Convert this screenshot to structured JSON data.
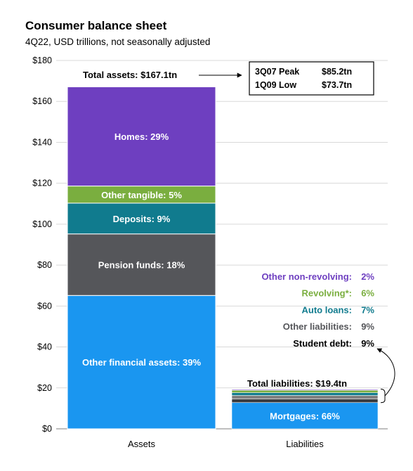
{
  "title": "Consumer balance sheet",
  "subtitle": "4Q22, USD trillions, not seasonally adjusted",
  "colors": {
    "homes": "#6E3FC0",
    "other_tangible": "#7AAE3F",
    "deposits": "#107B8E",
    "pension_funds": "#55565A",
    "other_financial": "#1A96F0",
    "grid": "#D9D9D9"
  },
  "chart_data": {
    "type": "bar",
    "stacked": true,
    "categories": [
      "Assets",
      "Liabilities"
    ],
    "ylim": [
      0,
      180
    ],
    "yticks": [
      "$0",
      "$20",
      "$40",
      "$60",
      "$80",
      "$100",
      "$120",
      "$140",
      "$160",
      "$180"
    ],
    "grid": true,
    "assets": {
      "total_label": "Total assets: $167.1tn",
      "total": 167.1,
      "segments": [
        {
          "label": "Other financial assets: 39%",
          "pct": 39,
          "color": "#1A96F0",
          "text_dark": false
        },
        {
          "label": "Pension funds: 18%",
          "pct": 18,
          "color": "#55565A",
          "text_dark": false
        },
        {
          "label": "Deposits: 9%",
          "pct": 9,
          "color": "#107B8E",
          "text_dark": false
        },
        {
          "label": "Other tangible: 5%",
          "pct": 5,
          "color": "#7AAE3F",
          "text_dark": false
        },
        {
          "label": "Homes: 29%",
          "pct": 29,
          "color": "#6E3FC0",
          "text_dark": false
        }
      ]
    },
    "liabilities": {
      "total_label": "Total liabilities: $19.4tn",
      "total": 19.4,
      "segments": [
        {
          "label": "Mortgages: 66%",
          "pct": 66,
          "color": "#1A96F0"
        },
        {
          "label": "Student debt: 9%",
          "pct": 9,
          "color": "#3A3B3E"
        },
        {
          "label": "Other liabilities: 9%",
          "pct": 9,
          "color": "#7F7F7F"
        },
        {
          "label": "Auto loans: 7%",
          "pct": 7,
          "color": "#107B8E"
        },
        {
          "label": "Revolving*: 6%",
          "pct": 6,
          "color": "#7AAE3F"
        },
        {
          "label": "Other non-revolving: 2%",
          "pct": 2,
          "color": "#6E3FC0"
        }
      ],
      "legend": [
        {
          "name": "Other non-revolving:",
          "pct": "2%",
          "color": "#6E3FC0"
        },
        {
          "name": "Revolving*:",
          "pct": "6%",
          "color": "#7AAE3F"
        },
        {
          "name": "Auto loans:",
          "pct": "7%",
          "color": "#107B8E"
        },
        {
          "name": "Other liabilities:",
          "pct": "9%",
          "color": "#55565A"
        },
        {
          "name": "Student debt:",
          "pct": "9%",
          "color": "#000000"
        }
      ]
    },
    "box": {
      "rows": [
        {
          "label": "3Q07 Peak",
          "value": "$85.2tn"
        },
        {
          "label": "1Q09 Low",
          "value": "$73.7tn"
        }
      ]
    }
  }
}
